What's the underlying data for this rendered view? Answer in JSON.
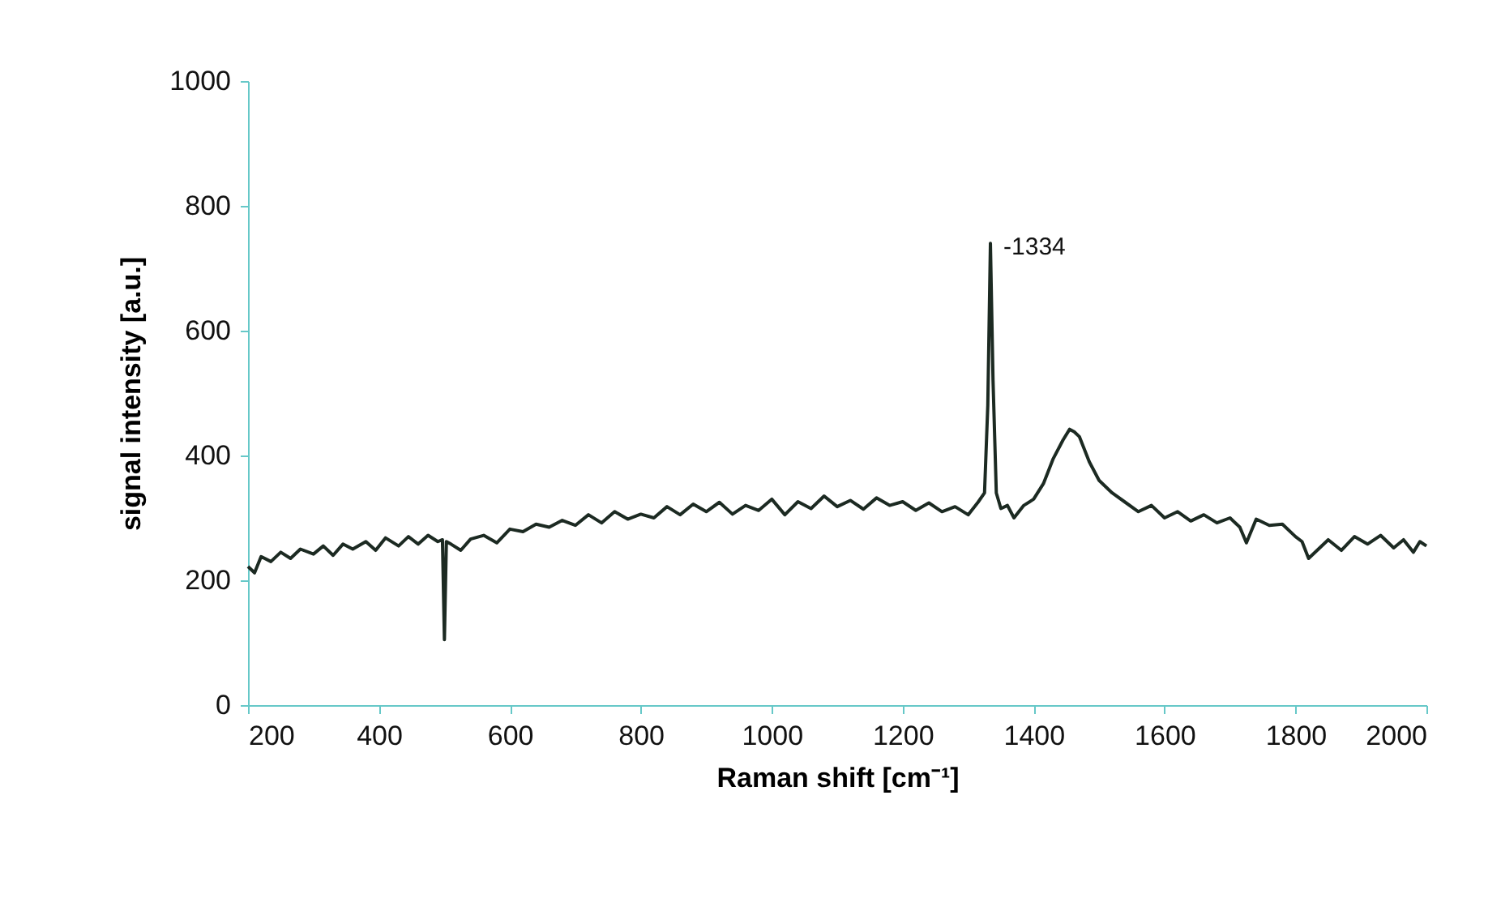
{
  "chart_data": {
    "type": "line",
    "xlabel": "Raman shift [cm⁻¹]",
    "ylabel": "signal intensity [a.u.]",
    "x": [
      200,
      210,
      220,
      235,
      250,
      265,
      280,
      300,
      315,
      330,
      345,
      360,
      380,
      395,
      410,
      430,
      445,
      460,
      475,
      490,
      497,
      500,
      503,
      510,
      525,
      540,
      560,
      580,
      600,
      620,
      640,
      660,
      680,
      700,
      720,
      740,
      760,
      780,
      800,
      820,
      840,
      860,
      880,
      900,
      920,
      940,
      960,
      980,
      1000,
      1020,
      1040,
      1060,
      1080,
      1100,
      1120,
      1140,
      1160,
      1180,
      1200,
      1220,
      1240,
      1260,
      1280,
      1300,
      1315,
      1325,
      1330,
      1334,
      1338,
      1343,
      1350,
      1360,
      1370,
      1385,
      1400,
      1415,
      1430,
      1445,
      1455,
      1462,
      1470,
      1485,
      1500,
      1520,
      1540,
      1560,
      1580,
      1600,
      1620,
      1640,
      1660,
      1680,
      1700,
      1715,
      1725,
      1740,
      1760,
      1780,
      1800,
      1810,
      1820,
      1835,
      1850,
      1870,
      1890,
      1910,
      1930,
      1950,
      1965,
      1980,
      1990,
      2000
    ],
    "series": [
      {
        "color": "#1c2a22",
        "values": [
          222,
          212,
          238,
          230,
          245,
          235,
          250,
          242,
          255,
          240,
          258,
          250,
          262,
          248,
          268,
          255,
          270,
          258,
          272,
          262,
          265,
          105,
          262,
          258,
          248,
          266,
          272,
          260,
          282,
          278,
          290,
          285,
          296,
          288,
          305,
          292,
          310,
          298,
          306,
          300,
          318,
          305,
          322,
          310,
          325,
          306,
          320,
          312,
          330,
          305,
          326,
          315,
          335,
          318,
          328,
          314,
          332,
          320,
          326,
          312,
          324,
          310,
          318,
          305,
          325,
          340,
          480,
          740,
          520,
          340,
          315,
          320,
          300,
          320,
          330,
          355,
          395,
          425,
          442,
          438,
          430,
          390,
          360,
          340,
          325,
          310,
          320,
          300,
          310,
          295,
          305,
          292,
          300,
          285,
          260,
          298,
          288,
          290,
          270,
          262,
          235,
          250,
          265,
          248,
          270,
          258,
          272,
          252,
          265,
          245,
          262,
          255
        ]
      }
    ],
    "annotations": [
      {
        "text": "-1334",
        "x": 1334,
        "y": 740
      }
    ],
    "xlim": [
      200,
      2000
    ],
    "xticks": [
      200,
      400,
      600,
      800,
      1000,
      1200,
      1400,
      1600,
      1800,
      2000
    ],
    "ylim": [
      0,
      1000
    ],
    "yticks": [
      0,
      200,
      400,
      600,
      800,
      1000
    ],
    "grid": false,
    "marker": "none",
    "line_style": "solid"
  }
}
